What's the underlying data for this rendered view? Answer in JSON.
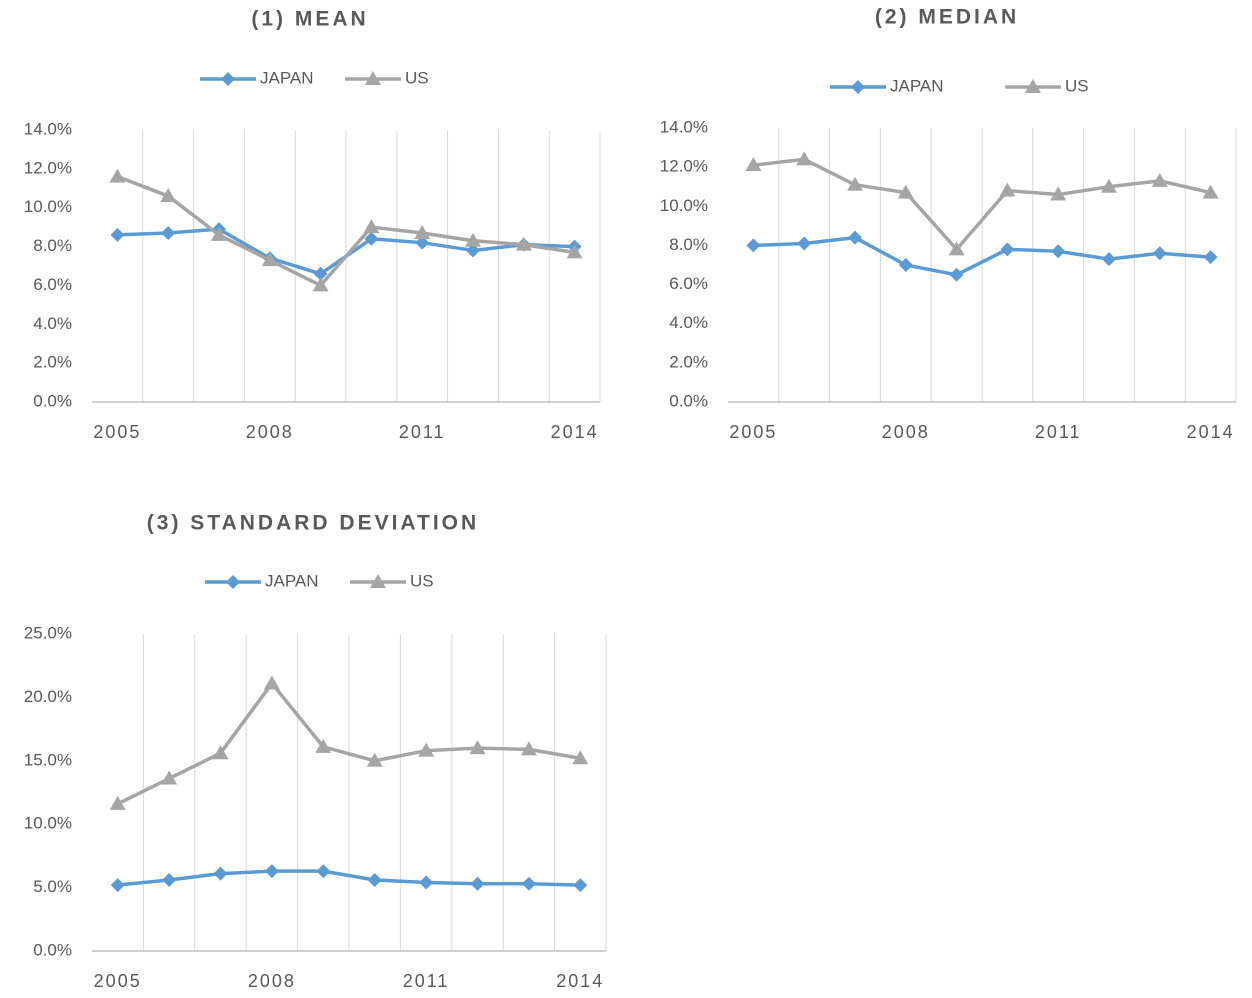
{
  "chart_data": [
    {
      "type": "line",
      "title": "(1) MEAN",
      "categories": [
        "2005",
        null,
        null,
        "2008",
        null,
        null,
        "2011",
        null,
        null,
        "2014"
      ],
      "series": [
        {
          "name": "JAPAN",
          "color": "#5b9bd5",
          "marker": "diamond",
          "values": [
            8.6,
            8.7,
            8.9,
            7.4,
            6.6,
            8.4,
            8.2,
            7.8,
            8.1,
            8.0
          ]
        },
        {
          "name": "US",
          "color": "#a5a5a5",
          "marker": "triangle",
          "values": [
            11.6,
            10.6,
            8.6,
            7.3,
            6.0,
            9.0,
            8.7,
            8.3,
            8.1,
            7.7
          ]
        }
      ],
      "ylim": [
        0,
        14
      ],
      "yticks": [
        {
          "value": 0,
          "label": "0.0%"
        },
        {
          "value": 2,
          "label": "2.0%"
        },
        {
          "value": 4,
          "label": "4.0%"
        },
        {
          "value": 6,
          "label": "6.0%"
        },
        {
          "value": 8,
          "label": "8.0%"
        },
        {
          "value": 10,
          "label": "10.0%"
        },
        {
          "value": 12,
          "label": "12.0%"
        },
        {
          "value": 14,
          "label": "14.0%"
        }
      ]
    },
    {
      "type": "line",
      "title": "(2) MEDIAN",
      "categories": [
        "2005",
        null,
        null,
        "2008",
        null,
        null,
        "2011",
        null,
        null,
        "2014"
      ],
      "series": [
        {
          "name": "JAPAN",
          "color": "#5b9bd5",
          "marker": "diamond",
          "values": [
            8.0,
            8.1,
            8.4,
            7.0,
            6.5,
            7.8,
            7.7,
            7.3,
            7.6,
            7.4
          ]
        },
        {
          "name": "US",
          "color": "#a5a5a5",
          "marker": "triangle",
          "values": [
            12.1,
            12.4,
            11.1,
            10.7,
            7.8,
            10.8,
            10.6,
            11.0,
            11.3,
            10.7
          ]
        }
      ],
      "ylim": [
        0,
        14
      ],
      "yticks": [
        {
          "value": 0,
          "label": "0.0%"
        },
        {
          "value": 2,
          "label": "2.0%"
        },
        {
          "value": 4,
          "label": "4.0%"
        },
        {
          "value": 6,
          "label": "6.0%"
        },
        {
          "value": 8,
          "label": "8.0%"
        },
        {
          "value": 10,
          "label": "10.0%"
        },
        {
          "value": 12,
          "label": "12.0%"
        },
        {
          "value": 14,
          "label": "14.0%"
        }
      ]
    },
    {
      "type": "line",
      "title": "(3) STANDARD DEVIATION",
      "categories": [
        "2005",
        null,
        null,
        "2008",
        null,
        null,
        "2011",
        null,
        null,
        "2014"
      ],
      "series": [
        {
          "name": "JAPAN",
          "color": "#5b9bd5",
          "marker": "diamond",
          "values": [
            5.2,
            5.6,
            6.1,
            6.3,
            6.3,
            5.6,
            5.4,
            5.3,
            5.3,
            5.2
          ]
        },
        {
          "name": "US",
          "color": "#a5a5a5",
          "marker": "triangle",
          "values": [
            11.6,
            13.6,
            15.6,
            21.1,
            16.1,
            15.0,
            15.8,
            16.0,
            15.9,
            15.2
          ]
        }
      ],
      "ylim": [
        0,
        25
      ],
      "yticks": [
        {
          "value": 0,
          "label": "0.0%"
        },
        {
          "value": 5,
          "label": "5.0%"
        },
        {
          "value": 10,
          "label": "10.0%"
        },
        {
          "value": 15,
          "label": "15.0%"
        },
        {
          "value": 20,
          "label": "20.0%"
        },
        {
          "value": 25,
          "label": "25.0%"
        }
      ]
    }
  ]
}
